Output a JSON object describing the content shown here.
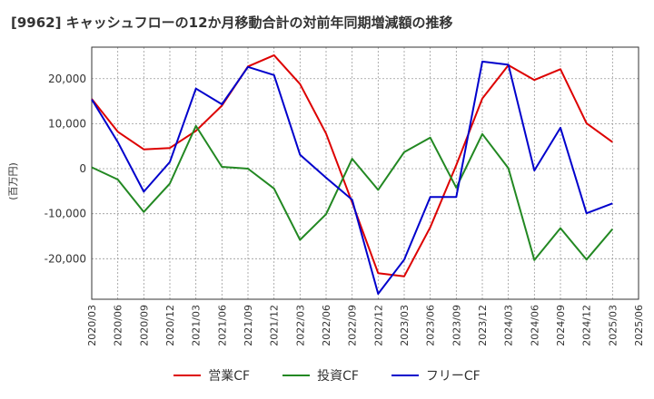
{
  "chart_data": {
    "type": "line",
    "title": "[9962]  キャッシュフローの12か月移動合計の対前年同期増減額の推移",
    "ylabel": "(百万円)",
    "ylim": [
      -29000,
      27000
    ],
    "yticks": [
      -20000,
      -10000,
      0,
      10000,
      20000
    ],
    "ytick_labels": [
      "-20,000",
      "-10,000",
      "0",
      "10,000",
      "20,000"
    ],
    "categories": [
      "2020/03",
      "2020/06",
      "2020/09",
      "2020/12",
      "2021/03",
      "2021/06",
      "2021/09",
      "2021/12",
      "2022/03",
      "2022/06",
      "2022/09",
      "2022/12",
      "2023/03",
      "2023/06",
      "2023/09",
      "2023/12",
      "2024/03",
      "2024/06",
      "2024/09",
      "2024/12",
      "2025/03",
      "2025/06"
    ],
    "grid": true,
    "legend_position": "bottom",
    "series": [
      {
        "name": "営業CF",
        "color": "#dd0000",
        "values": [
          15500,
          8200,
          4300,
          4600,
          8400,
          14000,
          22700,
          25200,
          18800,
          7800,
          -7500,
          -23200,
          -23900,
          -13000,
          800,
          15600,
          23000,
          19700,
          22100,
          10100,
          5900,
          null
        ]
      },
      {
        "name": "投資CF",
        "color": "#228822",
        "values": [
          300,
          -2400,
          -9600,
          -3300,
          9500,
          400,
          0,
          -4400,
          -15800,
          -10100,
          2200,
          -4700,
          3700,
          6900,
          -4200,
          7700,
          100,
          -20300,
          -13200,
          -20200,
          -13400,
          null
        ]
      },
      {
        "name": "フリーCF",
        "color": "#0000cc",
        "values": [
          15400,
          5900,
          -5100,
          1500,
          17800,
          14300,
          22600,
          20800,
          3100,
          -2000,
          -6900,
          -27800,
          -20200,
          -6300,
          -6300,
          23800,
          23100,
          -400,
          9100,
          -9900,
          -7700,
          null
        ]
      }
    ]
  }
}
